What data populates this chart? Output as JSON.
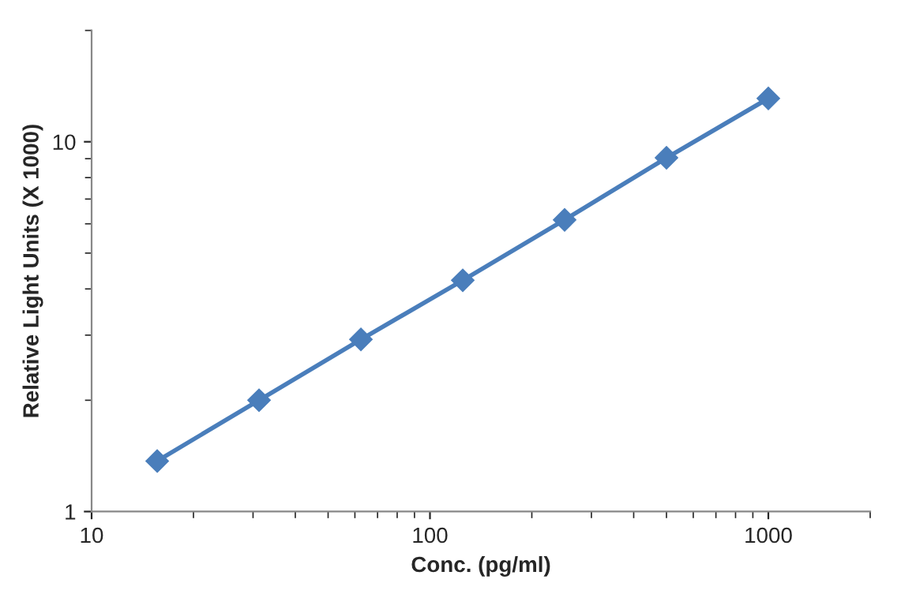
{
  "chart_data": {
    "type": "line",
    "xlabel": "Conc. (pg/ml)",
    "ylabel": "Relative Light Units (X 1000)",
    "x": [
      15.625,
      31.25,
      62.5,
      125,
      250,
      500,
      1000
    ],
    "series": [
      {
        "color": "#4a7ebb",
        "values": [
          1.37,
          2.0,
          2.92,
          4.22,
          6.15,
          9.05,
          13.1
        ]
      }
    ],
    "log": "xy",
    "xlim": [
      10,
      2000
    ],
    "ylim": [
      1,
      20
    ],
    "xticks": [
      10,
      100,
      1000
    ],
    "yticks": [
      1,
      10
    ],
    "marker": "diamond",
    "line_style": "solid",
    "grid": false,
    "legend": false
  }
}
